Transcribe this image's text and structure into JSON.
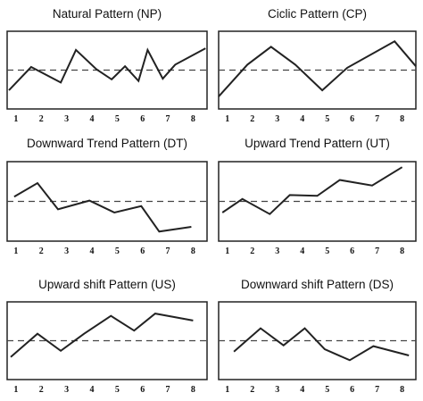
{
  "chart_data": [
    {
      "type": "line",
      "title": "Natural Pattern (NP)",
      "color": "#222222",
      "xlim": [
        0.65,
        8.55
      ],
      "ylim": [
        0,
        10
      ],
      "xticks": [
        1,
        2,
        3,
        4,
        5,
        6,
        7,
        8
      ],
      "reference_line": 5,
      "x": [
        0.72,
        1.6,
        2.77,
        3.37,
        4.18,
        4.78,
        5.31,
        5.84,
        6.2,
        6.8,
        7.29,
        8.49
      ],
      "values": [
        2.4,
        5.4,
        3.4,
        7.6,
        5.1,
        3.8,
        5.5,
        3.6,
        7.6,
        3.9,
        5.7,
        7.8
      ]
    },
    {
      "type": "line",
      "title": "Ciclic Pattern (CP)",
      "color": "#222222",
      "xlim": [
        0.65,
        8.55
      ],
      "ylim": [
        0,
        10
      ],
      "xticks": [
        1,
        2,
        3,
        4,
        5,
        6,
        7,
        8
      ],
      "reference_line": 5,
      "x": [
        0.65,
        1.8,
        2.75,
        3.72,
        4.8,
        5.8,
        7.7,
        8.55
      ],
      "values": [
        1.6,
        5.7,
        8.0,
        5.7,
        2.4,
        5.3,
        8.7,
        5.5
      ]
    },
    {
      "type": "line",
      "title": "Downward Trend Pattern (DT)",
      "color": "#222222",
      "xlim": [
        0.65,
        8.55
      ],
      "ylim": [
        0,
        10
      ],
      "xticks": [
        1,
        2,
        3,
        4,
        5,
        6,
        7,
        8
      ],
      "reference_line": 5,
      "x": [
        0.93,
        1.85,
        2.66,
        3.9,
        4.89,
        5.95,
        6.66,
        7.93
      ],
      "values": [
        5.6,
        7.3,
        4.0,
        5.1,
        3.6,
        4.4,
        1.2,
        1.8
      ]
    },
    {
      "type": "line",
      "title": "Upward Trend Pattern (UT)",
      "color": "#222222",
      "xlim": [
        0.65,
        8.55
      ],
      "ylim": [
        0,
        10
      ],
      "xticks": [
        1,
        2,
        3,
        4,
        5,
        6,
        7,
        8
      ],
      "reference_line": 5,
      "x": [
        0.8,
        1.6,
        2.7,
        3.5,
        4.6,
        5.5,
        6.8,
        8.0
      ],
      "values": [
        3.6,
        5.3,
        3.4,
        5.8,
        5.7,
        7.7,
        7.0,
        9.3
      ]
    },
    {
      "type": "line",
      "title": "Upward shift Pattern (US)",
      "color": "#222222",
      "xlim": [
        0.65,
        8.55
      ],
      "ylim": [
        0,
        10
      ],
      "xticks": [
        1,
        2,
        3,
        4,
        5,
        6,
        7,
        8
      ],
      "reference_line": 5,
      "x": [
        0.79,
        1.85,
        2.77,
        3.69,
        4.75,
        5.67,
        6.5,
        8.0
      ],
      "values": [
        2.9,
        5.9,
        3.7,
        5.9,
        8.2,
        6.3,
        8.5,
        7.6
      ]
    },
    {
      "type": "line",
      "title": "Downward shift Pattern (DS)",
      "color": "#222222",
      "xlim": [
        0.65,
        8.55
      ],
      "ylim": [
        0,
        10
      ],
      "xticks": [
        1,
        2,
        3,
        4,
        5,
        6,
        7,
        8
      ],
      "reference_line": 5,
      "x": [
        1.26,
        2.33,
        3.25,
        4.1,
        4.9,
        5.9,
        6.85,
        8.27
      ],
      "values": [
        3.6,
        6.6,
        4.4,
        6.6,
        3.9,
        2.5,
        4.3,
        3.1
      ]
    }
  ]
}
